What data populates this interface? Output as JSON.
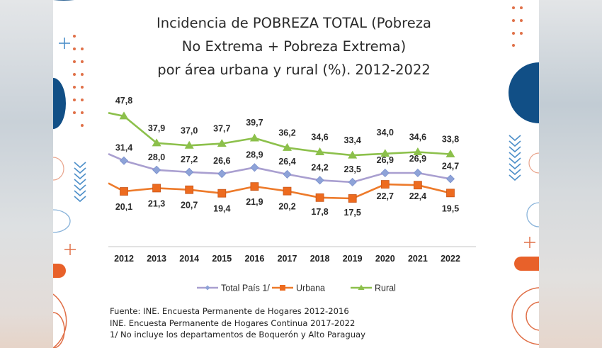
{
  "chart_data": {
    "type": "line",
    "title": [
      "Incidencia de POBREZA TOTAL (Pobreza",
      "No Extrema + Pobreza Extrema)",
      "por área urbana y rural (%). 2012-2022"
    ],
    "xlabel": "",
    "ylabel": "",
    "categories": [
      "2012",
      "2013",
      "2014",
      "2015",
      "2016",
      "2017",
      "2018",
      "2019",
      "2020",
      "2021",
      "2022"
    ],
    "series": [
      {
        "name": "Total País 1/",
        "marker": "diamond",
        "color": "#a99fd0",
        "marker_color": "#8ea3d8",
        "values": [
          31.4,
          28.0,
          27.2,
          26.6,
          28.9,
          26.4,
          24.2,
          23.5,
          26.9,
          26.9,
          24.7
        ],
        "labels": [
          "31,4",
          "28,0",
          "27,2",
          "26,6",
          "28,9",
          "26,4",
          "24,2",
          "23,5",
          "26,9",
          "26,9",
          "24,7"
        ]
      },
      {
        "name": "Urbana",
        "marker": "square",
        "color": "#ed7a2a",
        "marker_color": "#ed6b1f",
        "values": [
          20.1,
          21.3,
          20.7,
          19.4,
          21.9,
          20.2,
          17.8,
          17.5,
          22.7,
          22.4,
          19.5
        ],
        "labels": [
          "20,1",
          "21,3",
          "20,7",
          "19,4",
          "21,9",
          "20,2",
          "17,8",
          "17,5",
          "22,7",
          "22,4",
          "19,5"
        ]
      },
      {
        "name": "Rural",
        "marker": "triangle",
        "color": "#8cc04b",
        "marker_color": "#8cc04b",
        "values": [
          47.8,
          37.9,
          37.0,
          37.7,
          39.7,
          36.2,
          34.6,
          33.4,
          34.0,
          34.6,
          33.8
        ],
        "labels": [
          "47,8",
          "37,9",
          "37,0",
          "37,7",
          "39,7",
          "36,2",
          "34,6",
          "33,4",
          "34,0",
          "34,6",
          "33,8"
        ]
      }
    ],
    "ylim": [
      0,
      50
    ],
    "grid": false,
    "legend": "bottom-center"
  },
  "footer": [
    "Fuente: INE. Encuesta Permanente de Hogares 2012-2016",
    "INE. Encuesta Permanente de Hogares Continua 2017-2022",
    "1/ No incluye los departamentos de Boquerón y Alto Paraguay"
  ],
  "colors": {
    "navy": "#114f86",
    "orange": "#e8612a",
    "light_blue": "#4d8fc9"
  }
}
